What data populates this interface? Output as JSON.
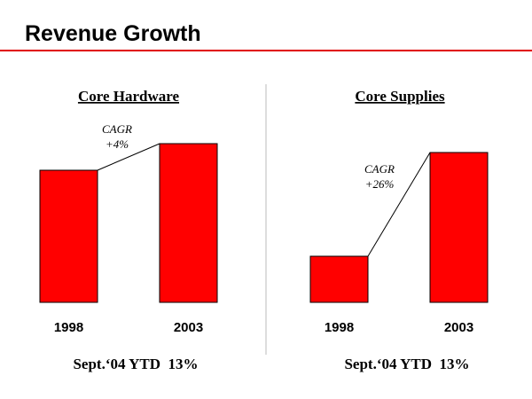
{
  "title": "Revenue Growth",
  "chart_data": [
    {
      "type": "bar",
      "title": "Core Hardware",
      "categories": [
        "1998",
        "2003"
      ],
      "values": [
        149,
        179
      ],
      "color": "#ff0000",
      "ylim": [
        0,
        180
      ],
      "annotation": [
        "CAGR",
        "+4%"
      ],
      "footer": "Sept.‘04 YTD  13%"
    },
    {
      "type": "bar",
      "title": "Core Supplies",
      "categories": [
        "1998",
        "2003"
      ],
      "values": [
        52,
        169
      ],
      "color": "#ff0000",
      "ylim": [
        0,
        180
      ],
      "annotation": [
        "CAGR",
        "+26%"
      ],
      "footer": "Sept.‘04 YTD  13%"
    }
  ]
}
